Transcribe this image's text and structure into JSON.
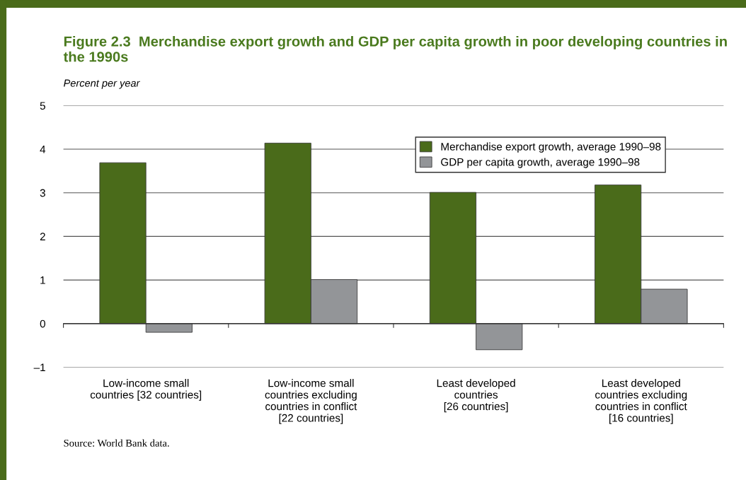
{
  "chart_data": {
    "type": "bar",
    "title": "Figure 2.3  Merchandise export growth and GDP per capita growth in poor developing countries in the 1990s",
    "ylabel": "Percent per year",
    "categories": [
      "Low-income small\ncountries [32 countries]",
      "Low-income small\ncountries excluding\ncountries in conflict\n[22 countries]",
      "Least developed\ncountries\n[26 countries]",
      "Least developed\ncountries excluding\ncountries in conflict\n[16 countries]"
    ],
    "series": [
      {
        "name": "Merchandise export growth, average 1990–98",
        "color": "#4a6b1a",
        "values": [
          3.69,
          4.14,
          3.01,
          3.18
        ]
      },
      {
        "name": "GDP per capita growth, average 1990–98",
        "color": "#939598",
        "values": [
          -0.2,
          1.01,
          -0.6,
          0.79
        ]
      }
    ],
    "ylim": [
      -1,
      5
    ],
    "yticks": [
      {
        "value": -1,
        "label": "–1"
      },
      0,
      1,
      2,
      3,
      4,
      5
    ],
    "grid": "y",
    "legend": "top right",
    "annotations": [
      "Source: World Bank data."
    ]
  }
}
